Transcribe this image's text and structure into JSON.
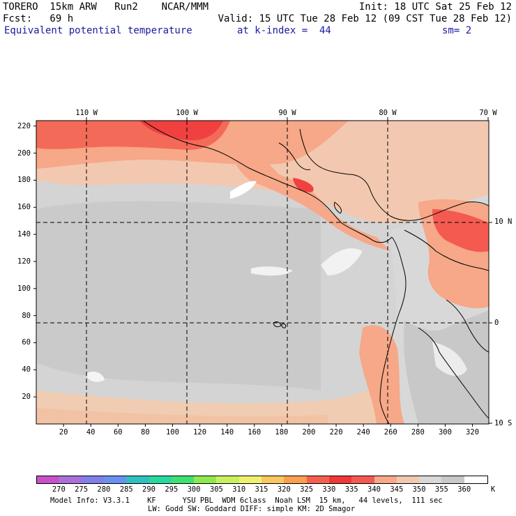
{
  "header": {
    "line1_left": "TORERO  15km ARW   Run2    NCAR/MMM",
    "line1_right": "Init: 18 UTC Sat 25 Feb 12",
    "line2_left": "Fcst:   69 h",
    "line2_right": "Valid: 15 UTC Tue 28 Feb 12 (09 CST Tue 28 Feb 12)",
    "line3_field": "Equivalent potential temperature",
    "line3_level": "at k-index =  44",
    "line3_sm": "sm= 2"
  },
  "map": {
    "lon_labels": [
      "110 W",
      "100 W",
      "90 W",
      "80 W",
      "70 W"
    ],
    "lat_labels": [
      "10 N",
      "0",
      "10 S"
    ],
    "x_ticks": [
      "20",
      "40",
      "60",
      "80",
      "100",
      "120",
      "140",
      "160",
      "180",
      "200",
      "220",
      "240",
      "260",
      "280",
      "300",
      "320"
    ],
    "y_ticks": [
      "220",
      "200",
      "180",
      "160",
      "140",
      "120",
      "100",
      "80",
      "60",
      "40",
      "20"
    ],
    "x_range": [
      0,
      332
    ],
    "y_range": [
      0,
      224
    ]
  },
  "colorbar": {
    "levels": [
      "270",
      "275",
      "280",
      "285",
      "290",
      "295",
      "300",
      "305",
      "310",
      "315",
      "320",
      "325",
      "330",
      "335",
      "340",
      "345",
      "350",
      "355",
      "360"
    ],
    "unit": "K",
    "colors": [
      "#c850c8",
      "#a870d8",
      "#8080e8",
      "#6a90f0",
      "#30c0c0",
      "#28d8a0",
      "#40e070",
      "#90e850",
      "#c8f060",
      "#f0f070",
      "#f8c860",
      "#f8a050",
      "#f46050",
      "#f03838",
      "#f45a50",
      "#f6a888",
      "#f2c8b0",
      "#d8d8d8",
      "#c8c8c8",
      "#ffffff"
    ]
  },
  "footer": {
    "line1": "Model Info: V3.3.1    KF      YSU PBL  WDM 6class  Noah LSM  15 km,   44 levels,  111 sec",
    "line2": "LW: Godd SW: Goddard DIFF: simple KM: 2D Smagor"
  }
}
